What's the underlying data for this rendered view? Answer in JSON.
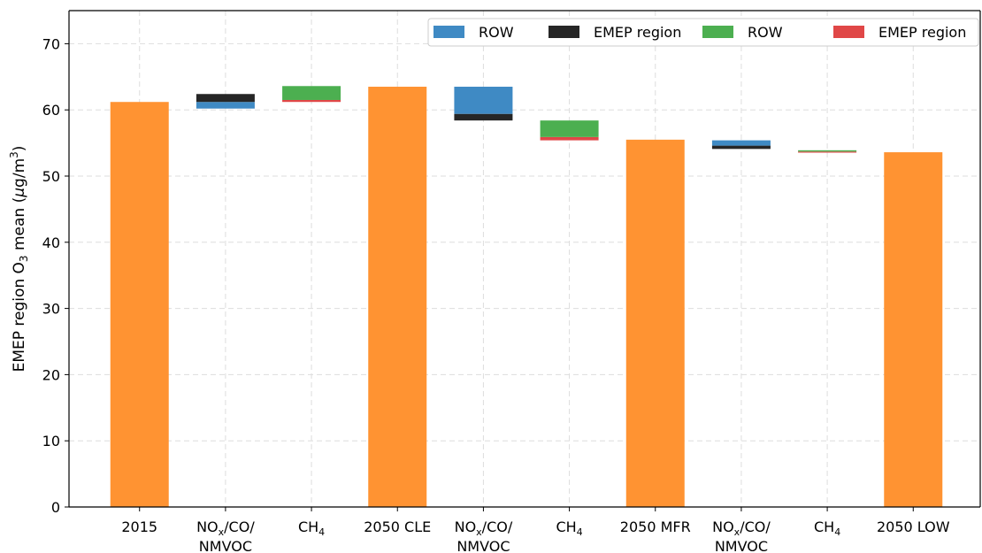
{
  "chart_data": {
    "type": "bar",
    "subtype": "waterfall",
    "ylabel": {
      "prefix": "EMEP region O",
      "sub": "3",
      "mid": " mean (",
      "mu": "μ",
      "unit": "g/m",
      "sup": "3",
      "suffix": ")"
    },
    "ylim": [
      0,
      75
    ],
    "yticks": [
      0,
      10,
      20,
      30,
      40,
      50,
      60,
      70
    ],
    "grid": true,
    "legend_position": "top-right",
    "colors": {
      "total": "#ff9332",
      "row_blue": "#3f8ac4",
      "emep_black": "#262626",
      "row_green": "#4caf50",
      "emep_red": "#e04747",
      "grid": "#dddddd",
      "axis": "#000000"
    },
    "legend": [
      {
        "label": "ROW",
        "color": "#3f8ac4"
      },
      {
        "label": "EMEP region",
        "color": "#262626"
      },
      {
        "label": "ROW",
        "color": "#4caf50"
      },
      {
        "label": "EMEP region",
        "color": "#e04747"
      }
    ],
    "categories": [
      {
        "lines": [
          "2015"
        ]
      },
      {
        "lines": [
          "NOx/CO/",
          "NMVOC"
        ],
        "subscript_line0": {
          "base": "NO",
          "sub": "x",
          "rest": "/CO/"
        }
      },
      {
        "lines": [
          "CH4"
        ],
        "subscript_line0": {
          "base": "CH",
          "sub": "4",
          "rest": ""
        }
      },
      {
        "lines": [
          "2050 CLE"
        ]
      },
      {
        "lines": [
          "NOx/CO/",
          "NMVOC"
        ],
        "subscript_line0": {
          "base": "NO",
          "sub": "x",
          "rest": "/CO/"
        }
      },
      {
        "lines": [
          "CH4"
        ],
        "subscript_line0": {
          "base": "CH",
          "sub": "4",
          "rest": ""
        }
      },
      {
        "lines": [
          "2050 MFR"
        ]
      },
      {
        "lines": [
          "NOx/CO/",
          "NMVOC"
        ],
        "subscript_line0": {
          "base": "NO",
          "sub": "x",
          "rest": "/CO/"
        }
      },
      {
        "lines": [
          "CH4"
        ],
        "subscript_line0": {
          "base": "CH",
          "sub": "4",
          "rest": ""
        }
      },
      {
        "lines": [
          "2050 LOW"
        ]
      }
    ],
    "bars": [
      {
        "index": 0,
        "segments": [
          {
            "kind": "total",
            "from": 0,
            "to": 61.2
          }
        ]
      },
      {
        "index": 1,
        "segments": [
          {
            "kind": "row_blue",
            "from": 60.2,
            "to": 61.2
          },
          {
            "kind": "emep_black",
            "from": 61.2,
            "to": 62.4
          }
        ]
      },
      {
        "index": 2,
        "segments": [
          {
            "kind": "emep_red",
            "from": 61.2,
            "to": 61.5
          },
          {
            "kind": "row_green",
            "from": 61.5,
            "to": 63.6
          }
        ]
      },
      {
        "index": 3,
        "segments": [
          {
            "kind": "total",
            "from": 0,
            "to": 63.5
          }
        ]
      },
      {
        "index": 4,
        "segments": [
          {
            "kind": "emep_black",
            "from": 58.4,
            "to": 59.4
          },
          {
            "kind": "row_blue",
            "from": 59.4,
            "to": 63.5
          }
        ]
      },
      {
        "index": 5,
        "segments": [
          {
            "kind": "emep_red",
            "from": 55.4,
            "to": 55.9
          },
          {
            "kind": "row_green",
            "from": 55.9,
            "to": 58.4
          }
        ]
      },
      {
        "index": 6,
        "segments": [
          {
            "kind": "total",
            "from": 0,
            "to": 55.5
          }
        ]
      },
      {
        "index": 7,
        "segments": [
          {
            "kind": "emep_black",
            "from": 54.1,
            "to": 54.6
          },
          {
            "kind": "row_blue",
            "from": 54.6,
            "to": 55.4
          }
        ]
      },
      {
        "index": 8,
        "segments": [
          {
            "kind": "emep_red",
            "from": 53.6,
            "to": 53.7
          },
          {
            "kind": "row_green",
            "from": 53.7,
            "to": 53.9
          }
        ]
      },
      {
        "index": 9,
        "segments": [
          {
            "kind": "total",
            "from": 0,
            "to": 53.6
          }
        ]
      }
    ]
  }
}
